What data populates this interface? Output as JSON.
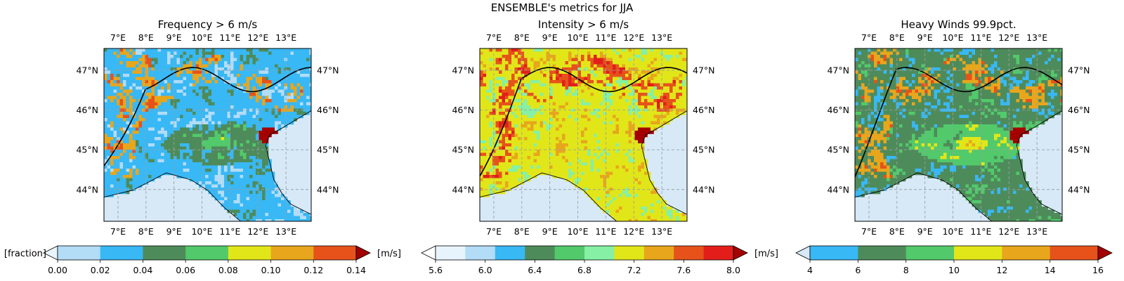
{
  "suptitle": "ENSEMBLE's metrics for JJA",
  "colors": {
    "sea": "#d7e9f7",
    "border": "#000000",
    "grid": "#9aa0a6",
    "coast": "#000000"
  },
  "chart_data": [
    {
      "type": "heatmap",
      "title": "Frequency > 6 m/s",
      "lon_ticks": [
        "7°E",
        "8°E",
        "9°E",
        "10°E",
        "11°E",
        "12°E",
        "13°E"
      ],
      "lat_ticks": [
        "44°N",
        "45°N",
        "46°N",
        "47°N"
      ],
      "lon_range": [
        6.5,
        13.9
      ],
      "lat_range": [
        43.2,
        47.55
      ],
      "grid": true,
      "colorbar": {
        "left_label": "[fraction]",
        "right_label": "[m/s]",
        "ticks": [
          "0.00",
          "0.02",
          "0.04",
          "0.06",
          "0.08",
          "0.10",
          "0.12",
          "0.14"
        ],
        "extend": "both",
        "under_color": "#e8f4fc",
        "over_color": "#a50000",
        "colors": [
          "#b3dcf7",
          "#38b8f5",
          "#4e8b5a",
          "#52c96b",
          "#e1e619",
          "#e8a61c",
          "#e6521a"
        ]
      },
      "field": {
        "base_level": 1,
        "plain_level": 3,
        "hot_level": 6
      }
    },
    {
      "type": "heatmap",
      "title": "Intensity > 6 m/s",
      "lon_ticks": [
        "7°E",
        "8°E",
        "9°E",
        "10°E",
        "11°E",
        "12°E",
        "13°E"
      ],
      "lat_ticks": [
        "44°N",
        "45°N",
        "46°N",
        "47°N"
      ],
      "lon_range": [
        6.5,
        13.9
      ],
      "lat_range": [
        43.2,
        47.55
      ],
      "grid": true,
      "colorbar": {
        "left_label": "",
        "right_label": "[m/s]",
        "ticks": [
          "5.6",
          "6.0",
          "6.4",
          "6.8",
          "7.2",
          "7.6",
          "8.0"
        ],
        "extend": "both",
        "under_color": "#ffffff",
        "over_color": "#a50000",
        "colors": [
          "#e8f4fc",
          "#b3dcf7",
          "#38b8f5",
          "#4e8b5a",
          "#52c96b",
          "#86f0a4",
          "#e1e619",
          "#e8a61c",
          "#e6521a",
          "#e31e1a"
        ]
      },
      "field": {
        "base_level": 6,
        "plain_level": 6,
        "hot_level": 9
      }
    },
    {
      "type": "heatmap",
      "title": "Heavy Winds 99.9pct.",
      "lon_ticks": [
        "7°E",
        "8°E",
        "9°E",
        "10°E",
        "11°E",
        "12°E",
        "13°E"
      ],
      "lat_ticks": [
        "44°N",
        "45°N",
        "46°N",
        "47°N"
      ],
      "lon_range": [
        6.5,
        13.9
      ],
      "lat_range": [
        43.2,
        47.55
      ],
      "grid": true,
      "colorbar": {
        "left_label": "",
        "right_label": "",
        "ticks": [
          "4",
          "6",
          "8",
          "10",
          "12",
          "14",
          "16"
        ],
        "extend": "both",
        "under_color": "#d7e9f7",
        "over_color": "#a50000",
        "colors": [
          "#38b8f5",
          "#4e8b5a",
          "#52c96b",
          "#e1e619",
          "#e8a61c",
          "#e6521a"
        ]
      },
      "field": {
        "base_level": 1,
        "plain_level": 3,
        "hot_level": 5
      }
    }
  ]
}
